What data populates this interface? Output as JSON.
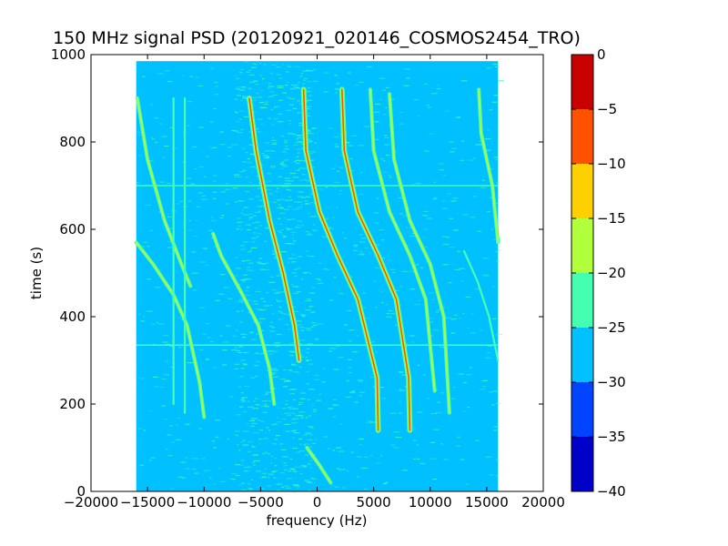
{
  "chart_data": {
    "type": "heatmap",
    "title": "150 MHz signal PSD (20120921_020146_COSMOS2454_TRO)",
    "xlabel": "frequency (Hz)",
    "ylabel": "time (s)",
    "xlim": [
      -20000,
      20000
    ],
    "ylim": [
      0,
      1000
    ],
    "data_extent": {
      "x": [
        -16000,
        16000
      ],
      "y": [
        0,
        985
      ]
    },
    "x_ticks": [
      -20000,
      -15000,
      -10000,
      -5000,
      0,
      5000,
      10000,
      15000,
      20000
    ],
    "y_ticks": [
      0,
      200,
      400,
      600,
      800,
      1000
    ],
    "x_tick_labels": [
      "−20000",
      "−15000",
      "−10000",
      "−5000",
      "0",
      "5000",
      "10000",
      "15000",
      "20000"
    ],
    "y_tick_labels": [
      "0",
      "200",
      "400",
      "600",
      "800",
      "1000"
    ],
    "colorbar": {
      "range": [
        -40,
        0
      ],
      "ticks": [
        0,
        -5,
        -10,
        -15,
        -20,
        -25,
        -30,
        -35,
        -40
      ],
      "tick_labels": [
        "0",
        "−5",
        "−10",
        "−15",
        "−20",
        "−25",
        "−30",
        "−35",
        "−40"
      ],
      "levels": [
        {
          "from": -40,
          "to": -35,
          "color": "#0000c8"
        },
        {
          "from": -35,
          "to": -30,
          "color": "#0044ff"
        },
        {
          "from": -30,
          "to": -25,
          "color": "#00c0ff"
        },
        {
          "from": -25,
          "to": -20,
          "color": "#44ffb0"
        },
        {
          "from": -20,
          "to": -15,
          "color": "#b2ff3c"
        },
        {
          "from": -15,
          "to": -10,
          "color": "#ffd000"
        },
        {
          "from": -10,
          "to": -5,
          "color": "#ff5200"
        },
        {
          "from": -5,
          "to": 0,
          "color": "#c80000"
        }
      ]
    },
    "background_level_color": "#00c0ff",
    "noise_level_color": "#44ffb0",
    "horizontal_lines": [
      {
        "y": 700,
        "color": "#44ffb0"
      },
      {
        "y": 335,
        "color": "#44ffb0"
      }
    ],
    "doppler_traces": [
      {
        "x": [
          -15900,
          -15000,
          -13500,
          -12000,
          -11200
        ],
        "y": [
          900,
          760,
          620,
          520,
          470
        ],
        "strength": "moderate"
      },
      {
        "x": [
          -16000,
          -14500,
          -12700,
          -11500,
          -10400,
          -10000
        ],
        "y": [
          570,
          520,
          450,
          380,
          250,
          170
        ],
        "strength": "moderate"
      },
      {
        "x": [
          -9200,
          -8500,
          -6800,
          -5200,
          -4200,
          -3800
        ],
        "y": [
          590,
          540,
          460,
          380,
          280,
          200
        ],
        "strength": "moderate"
      },
      {
        "x": [
          -6000,
          -5400,
          -4200,
          -3000,
          -2000,
          -1600
        ],
        "y": [
          900,
          780,
          620,
          500,
          380,
          300
        ],
        "strength": "strong"
      },
      {
        "x": [
          -1200,
          -1000,
          200,
          1800,
          3600,
          5300,
          5400
        ],
        "y": [
          920,
          780,
          640,
          540,
          440,
          260,
          140
        ],
        "strength": "strong"
      },
      {
        "x": [
          2200,
          2400,
          3600,
          5400,
          7000,
          8100,
          8200
        ],
        "y": [
          920,
          780,
          640,
          540,
          440,
          260,
          140
        ],
        "strength": "strong"
      },
      {
        "x": [
          4700,
          5000,
          6400,
          8200,
          9600,
          10400
        ],
        "y": [
          920,
          780,
          640,
          540,
          440,
          230
        ],
        "strength": "moderate"
      },
      {
        "x": [
          6400,
          6800,
          8200,
          10000,
          11200,
          11700
        ],
        "y": [
          910,
          760,
          620,
          520,
          400,
          180
        ],
        "strength": "moderate"
      },
      {
        "x": [
          14300,
          14500,
          15500,
          16000
        ],
        "y": [
          920,
          820,
          700,
          570
        ],
        "strength": "moderate"
      },
      {
        "x": [
          13000,
          14200,
          15200,
          16000
        ],
        "y": [
          550,
          480,
          400,
          300
        ],
        "strength": "weak"
      },
      {
        "x": [
          -12700,
          -12700
        ],
        "y": [
          900,
          200
        ],
        "strength": "weak"
      },
      {
        "x": [
          -11700,
          -11700
        ],
        "y": [
          900,
          180
        ],
        "strength": "weak"
      },
      {
        "x": [
          -900,
          200,
          1200
        ],
        "y": [
          100,
          60,
          20
        ],
        "strength": "moderate"
      }
    ]
  }
}
